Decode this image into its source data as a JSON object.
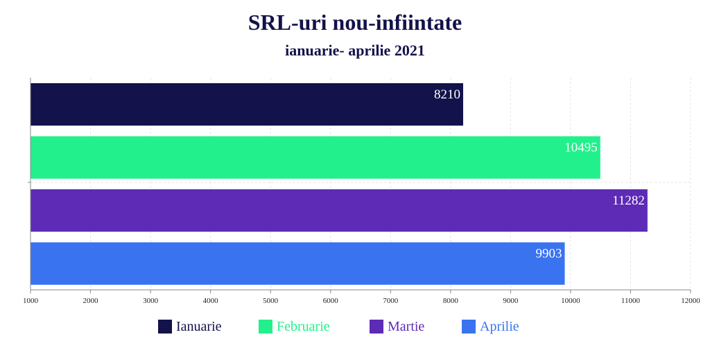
{
  "title": "SRL-uri nou-infiintate",
  "subtitle": "ianuarie- aprilie 2021",
  "chart_data": {
    "type": "bar",
    "orientation": "horizontal",
    "xlim": [
      1000,
      12000
    ],
    "xticks": [
      "1000",
      "2000",
      "3000",
      "4000",
      "5000",
      "6000",
      "7000",
      "8000",
      "9000",
      "10000",
      "11000",
      "12000"
    ],
    "grid": true,
    "legend_position": "bottom",
    "series": [
      {
        "name": "Ianuarie",
        "value": 8210,
        "label": "8210",
        "color": "#13124a"
      },
      {
        "name": "Februarie",
        "value": 10495,
        "label": "10495",
        "color": "#22f08c"
      },
      {
        "name": "Martie",
        "value": 11282,
        "label": "11282",
        "color": "#5d2bb5"
      },
      {
        "name": "Aprilie",
        "value": 9903,
        "label": "9903",
        "color": "#3a73f0"
      }
    ]
  }
}
